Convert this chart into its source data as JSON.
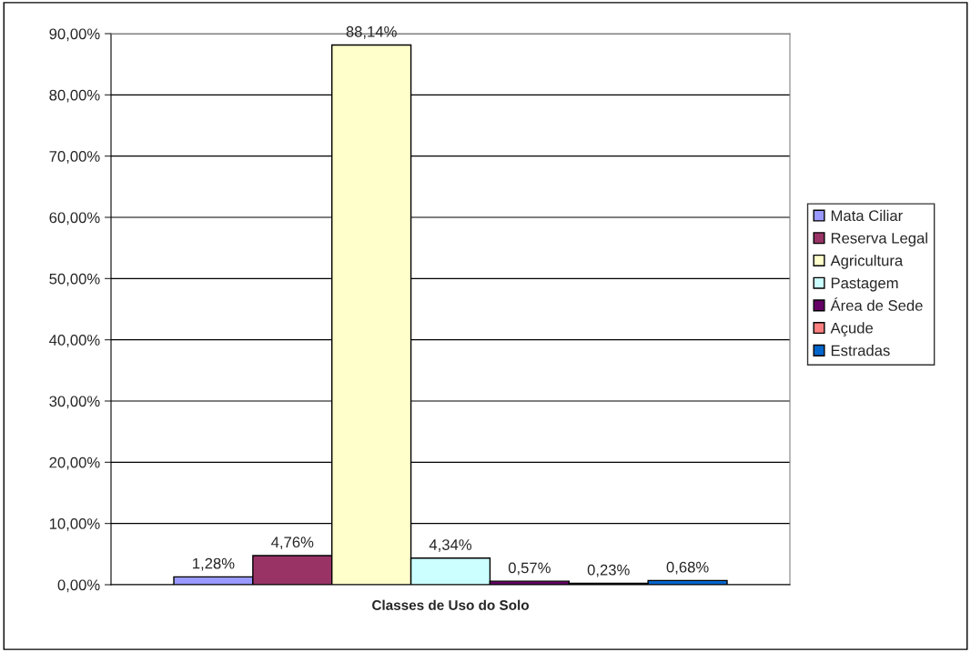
{
  "chart_data": {
    "type": "bar",
    "categories": [
      "Classes de Uso do Solo"
    ],
    "series": [
      {
        "name": "Mata Ciliar",
        "color": "#9999ff",
        "values": [
          1.28
        ],
        "value_labels": [
          "1,28%"
        ]
      },
      {
        "name": "Reserva Legal",
        "color": "#993366",
        "values": [
          4.76
        ],
        "value_labels": [
          "4,76%"
        ]
      },
      {
        "name": "Agricultura",
        "color": "#ffffcc",
        "values": [
          88.14
        ],
        "value_labels": [
          "88,14%"
        ]
      },
      {
        "name": "Pastagem",
        "color": "#ccffff",
        "values": [
          4.34
        ],
        "value_labels": [
          "4,34%"
        ]
      },
      {
        "name": "Área de Sede",
        "color": "#660066",
        "values": [
          0.57
        ],
        "value_labels": [
          "0,57%"
        ]
      },
      {
        "name": "Açude",
        "color": "#ff8080",
        "values": [
          0.23
        ],
        "value_labels": [
          "0,23%"
        ]
      },
      {
        "name": "Estradas",
        "color": "#0066cc",
        "values": [
          0.68
        ],
        "value_labels": [
          "0,68%"
        ]
      }
    ],
    "ylim": [
      0,
      90
    ],
    "yticks": [
      {
        "value": 0,
        "label": "0,00%"
      },
      {
        "value": 10,
        "label": "10,00%"
      },
      {
        "value": 20,
        "label": "20,00%"
      },
      {
        "value": 30,
        "label": "30,00%"
      },
      {
        "value": 40,
        "label": "40,00%"
      },
      {
        "value": 50,
        "label": "50,00%"
      },
      {
        "value": 60,
        "label": "60,00%"
      },
      {
        "value": 70,
        "label": "70,00%"
      },
      {
        "value": 80,
        "label": "80,00%"
      },
      {
        "value": 90,
        "label": "90,00%"
      }
    ],
    "grid": "y",
    "legend": "right"
  }
}
